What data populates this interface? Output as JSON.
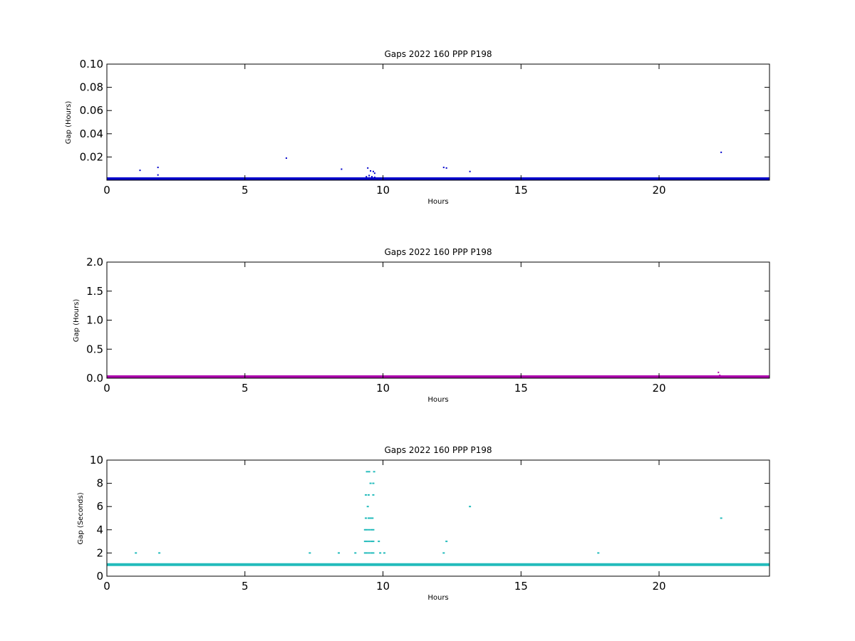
{
  "chart_data": [
    {
      "type": "scatter",
      "title": "Gaps 2022 160 PPP  P198",
      "xlabel": "Hours",
      "ylabel": "Gap (Hours)",
      "xlim": [
        0,
        24
      ],
      "ylim": [
        0,
        0.1
      ],
      "x_ticks": [
        "0",
        "5",
        "10",
        "15",
        "20"
      ],
      "y_ticks": [
        "0.02",
        "0.04",
        "0.06",
        "0.08",
        "0.10"
      ],
      "color": "#0000cc",
      "baseline": {
        "y": 0.00028,
        "x_start": 0,
        "x_end": 24
      },
      "points": [
        {
          "x": 1.2,
          "y": 0.0085
        },
        {
          "x": 1.85,
          "y": 0.011
        },
        {
          "x": 1.85,
          "y": 0.0045
        },
        {
          "x": 6.5,
          "y": 0.019
        },
        {
          "x": 8.5,
          "y": 0.0095
        },
        {
          "x": 9.4,
          "y": 0.003
        },
        {
          "x": 9.45,
          "y": 0.0105
        },
        {
          "x": 9.5,
          "y": 0.004
        },
        {
          "x": 9.55,
          "y": 0.008
        },
        {
          "x": 9.5,
          "y": 0.002
        },
        {
          "x": 9.6,
          "y": 0.003
        },
        {
          "x": 9.65,
          "y": 0.0075
        },
        {
          "x": 9.7,
          "y": 0.006
        },
        {
          "x": 9.7,
          "y": 0.0025
        },
        {
          "x": 9.55,
          "y": 0.0015
        },
        {
          "x": 12.2,
          "y": 0.011
        },
        {
          "x": 12.3,
          "y": 0.0105
        },
        {
          "x": 13.15,
          "y": 0.0075
        },
        {
          "x": 22.25,
          "y": 0.024
        },
        {
          "x": 22.25,
          "y": 0.0015
        }
      ]
    },
    {
      "type": "scatter",
      "title": "Gaps 2022 160 PPP  P198",
      "xlabel": "Hours",
      "ylabel": "Gap (Hours)",
      "xlim": [
        0,
        24
      ],
      "ylim": [
        0,
        2
      ],
      "x_ticks": [
        "0",
        "5",
        "10",
        "15",
        "20"
      ],
      "y_ticks": [
        "0.0",
        "0.5",
        "1.0",
        "1.5",
        "2.0"
      ],
      "color": "#aa00aa",
      "baseline": {
        "y": 0.00028,
        "x_start": 0,
        "x_end": 24
      },
      "points": [
        {
          "x": 22.15,
          "y": 0.1
        },
        {
          "x": 22.2,
          "y": 0.05
        },
        {
          "x": 9.5,
          "y": 0.01
        }
      ]
    },
    {
      "type": "scatter",
      "title": "Gaps 2022 160 PPP  P198",
      "xlabel": "Hours",
      "ylabel": "Gap (Seconds)",
      "xlim": [
        0,
        24
      ],
      "ylim": [
        0,
        10
      ],
      "x_ticks": [
        "0",
        "5",
        "10",
        "15",
        "20"
      ],
      "y_ticks": [
        "0",
        "2",
        "4",
        "6",
        "8",
        "10"
      ],
      "color": "#22bbbb",
      "baseline": {
        "y": 1,
        "x_start": 0,
        "x_end": 24
      },
      "points": [
        {
          "x": 1.05,
          "y": 2
        },
        {
          "x": 1.9,
          "y": 2
        },
        {
          "x": 7.35,
          "y": 2
        },
        {
          "x": 8.4,
          "y": 2
        },
        {
          "x": 9.0,
          "y": 2
        },
        {
          "x": 9.35,
          "y": 2
        },
        {
          "x": 9.42,
          "y": 2
        },
        {
          "x": 9.5,
          "y": 2
        },
        {
          "x": 9.58,
          "y": 2
        },
        {
          "x": 9.65,
          "y": 2
        },
        {
          "x": 9.35,
          "y": 3
        },
        {
          "x": 9.42,
          "y": 3
        },
        {
          "x": 9.5,
          "y": 3
        },
        {
          "x": 9.58,
          "y": 3
        },
        {
          "x": 9.65,
          "y": 3
        },
        {
          "x": 9.35,
          "y": 4
        },
        {
          "x": 9.42,
          "y": 4
        },
        {
          "x": 9.5,
          "y": 4
        },
        {
          "x": 9.58,
          "y": 4
        },
        {
          "x": 9.65,
          "y": 4
        },
        {
          "x": 9.38,
          "y": 5
        },
        {
          "x": 9.48,
          "y": 5
        },
        {
          "x": 9.55,
          "y": 5
        },
        {
          "x": 9.62,
          "y": 5
        },
        {
          "x": 9.45,
          "y": 6
        },
        {
          "x": 9.38,
          "y": 7
        },
        {
          "x": 9.48,
          "y": 7
        },
        {
          "x": 9.65,
          "y": 7
        },
        {
          "x": 9.55,
          "y": 8
        },
        {
          "x": 9.65,
          "y": 8
        },
        {
          "x": 9.42,
          "y": 9
        },
        {
          "x": 9.5,
          "y": 9
        },
        {
          "x": 9.68,
          "y": 9
        },
        {
          "x": 9.85,
          "y": 3
        },
        {
          "x": 9.9,
          "y": 2
        },
        {
          "x": 10.05,
          "y": 2
        },
        {
          "x": 12.2,
          "y": 2
        },
        {
          "x": 12.3,
          "y": 3
        },
        {
          "x": 13.15,
          "y": 6
        },
        {
          "x": 17.8,
          "y": 2
        },
        {
          "x": 22.25,
          "y": 5
        }
      ]
    }
  ]
}
